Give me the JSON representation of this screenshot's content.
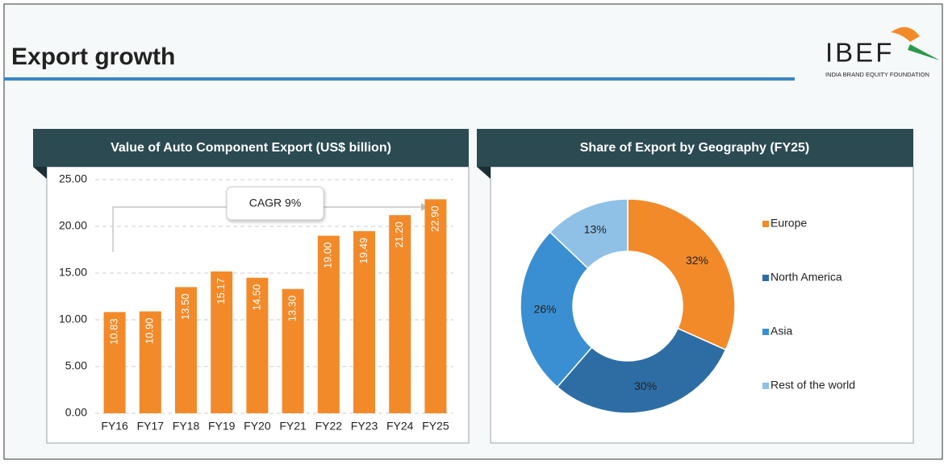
{
  "header": {
    "title": "Export growth",
    "logo": "IBEF",
    "logo_subtitle": "INDIA BRAND EQUITY FOUNDATION"
  },
  "chart_data": [
    {
      "type": "bar",
      "title": "Value of Auto Component Export (US$ billion)",
      "categories": [
        "FY16",
        "FY17",
        "FY18",
        "FY19",
        "FY20",
        "FY21",
        "FY22",
        "FY23",
        "FY24",
        "FY25"
      ],
      "values": [
        10.83,
        10.9,
        13.5,
        15.17,
        14.5,
        13.3,
        19.0,
        19.49,
        21.2,
        22.9
      ],
      "value_labels": [
        "10.83",
        "10.90",
        "13.50",
        "15.17",
        "14.50",
        "13.30",
        "19.00",
        "19.49",
        "21.20",
        "22.90"
      ],
      "color": "#f28a2a",
      "ylim": [
        0,
        25
      ],
      "yticks": [
        {
          "value": 0,
          "label": "0.00"
        },
        {
          "value": 5,
          "label": "5.00"
        },
        {
          "value": 10,
          "label": "10.00"
        },
        {
          "value": 15,
          "label": "15.00"
        },
        {
          "value": 20,
          "label": "20.00"
        },
        {
          "value": 25,
          "label": "25.00"
        }
      ],
      "grid": true,
      "annotation": "CAGR 9%"
    },
    {
      "type": "donut",
      "title": "Share of Export by Geography (FY25)",
      "categories": [
        "Europe",
        "North America",
        "Asia",
        "Rest of the world"
      ],
      "values": [
        32,
        30,
        26,
        13
      ],
      "value_labels": [
        "32%",
        "30%",
        "26%",
        "13%"
      ],
      "colors": [
        "#f28a2a",
        "#2e6da4",
        "#3a8fd2",
        "#8fc0e6"
      ],
      "legend": "right"
    }
  ]
}
